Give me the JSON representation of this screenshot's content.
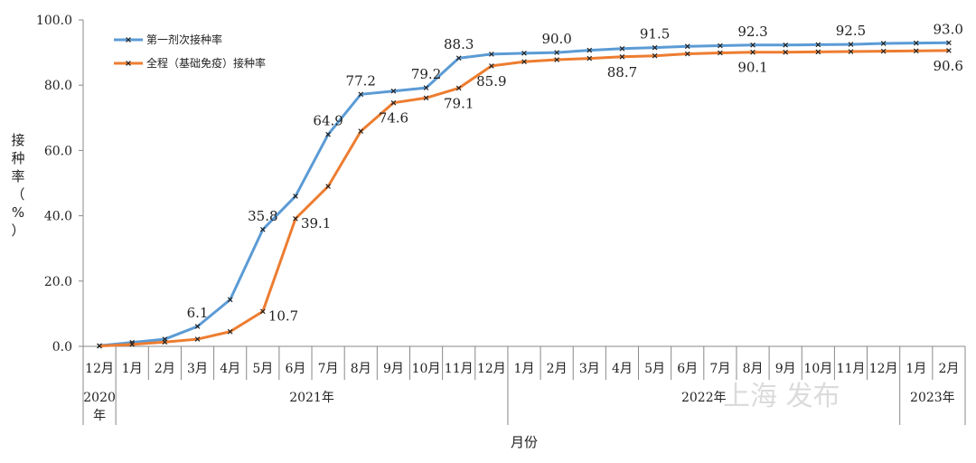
{
  "chart_data": {
    "type": "line",
    "ylabel": "接种率（%）",
    "xlabel": "月份",
    "ylim": [
      0,
      100
    ],
    "yticks": [
      "0.0",
      "20.0",
      "40.0",
      "60.0",
      "80.0",
      "100.0"
    ],
    "months": [
      "12月",
      "1月",
      "2月",
      "3月",
      "4月",
      "5月",
      "6月",
      "7月",
      "8月",
      "9月",
      "10月",
      "11月",
      "12月",
      "1月",
      "2月",
      "3月",
      "4月",
      "5月",
      "6月",
      "7月",
      "8月",
      "9月",
      "10月",
      "11月",
      "12月",
      "1月",
      "2月"
    ],
    "year_groups": [
      {
        "label": "2020年",
        "start": 0,
        "end": 0
      },
      {
        "label": "2021年",
        "start": 1,
        "end": 12
      },
      {
        "label": "2022年",
        "start": 13,
        "end": 24
      },
      {
        "label": "2023年",
        "start": 25,
        "end": 26
      }
    ],
    "series": [
      {
        "name": "第一剂次接种率",
        "color": "#5b9bd5",
        "values": [
          0.2,
          1.2,
          2.2,
          6.1,
          14.3,
          35.8,
          46.0,
          64.9,
          77.2,
          78.2,
          79.2,
          88.3,
          89.5,
          89.8,
          90.0,
          90.7,
          91.2,
          91.5,
          91.9,
          92.1,
          92.3,
          92.3,
          92.4,
          92.5,
          92.8,
          92.9,
          93.0
        ],
        "labels": [
          {
            "i": 3,
            "text": "6.1",
            "pos": "above"
          },
          {
            "i": 5,
            "text": "35.8",
            "pos": "above"
          },
          {
            "i": 7,
            "text": "64.9",
            "pos": "above"
          },
          {
            "i": 8,
            "text": "77.2",
            "pos": "above"
          },
          {
            "i": 10,
            "text": "79.2",
            "pos": "above"
          },
          {
            "i": 11,
            "text": "88.3",
            "pos": "above"
          },
          {
            "i": 14,
            "text": "90.0",
            "pos": "above"
          },
          {
            "i": 17,
            "text": "91.5",
            "pos": "above"
          },
          {
            "i": 20,
            "text": "92.3",
            "pos": "above"
          },
          {
            "i": 23,
            "text": "92.5",
            "pos": "above"
          },
          {
            "i": 26,
            "text": "93.0",
            "pos": "above"
          }
        ]
      },
      {
        "name": "全程（基础免疫）接种率",
        "color": "#ed7d31",
        "values": [
          0.1,
          0.6,
          1.3,
          2.2,
          4.5,
          10.7,
          39.1,
          49.0,
          65.9,
          74.6,
          76.1,
          79.1,
          85.9,
          87.2,
          87.8,
          88.2,
          88.7,
          89.0,
          89.6,
          89.9,
          90.1,
          90.1,
          90.2,
          90.3,
          90.4,
          90.5,
          90.6
        ],
        "labels": [
          {
            "i": 5,
            "text": "10.7",
            "pos": "right"
          },
          {
            "i": 6,
            "text": "39.1",
            "pos": "right"
          },
          {
            "i": 9,
            "text": "74.6",
            "pos": "below"
          },
          {
            "i": 11,
            "text": "79.1",
            "pos": "below"
          },
          {
            "i": 12,
            "text": "85.9",
            "pos": "below"
          },
          {
            "i": 16,
            "text": "88.7",
            "pos": "below"
          },
          {
            "i": 20,
            "text": "90.1",
            "pos": "below"
          },
          {
            "i": 26,
            "text": "90.6",
            "pos": "below"
          }
        ]
      }
    ],
    "legend_position": "top-left",
    "grid": false
  },
  "watermark": "上海 发布"
}
